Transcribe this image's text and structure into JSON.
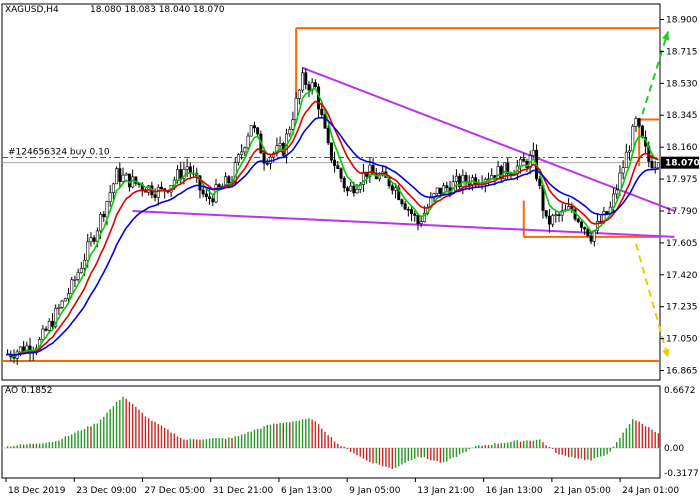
{
  "window": {
    "symbol_title": "XAGUSD,H4",
    "ohlc_text": "18.080 18.083 18.040 18.070",
    "order_line_label": "#124656324 buy 0.10",
    "current_price_label": "18.070"
  },
  "oscillator": {
    "label": "AO 0.1852",
    "max_label": "0.6672",
    "zero_label": "0.00",
    "min_label": "-0.3177"
  },
  "colors": {
    "bullish_candle": "#000000",
    "ma_green": "#00cc00",
    "ma_red": "#dd0000",
    "ma_blue": "#0000dd",
    "trendline": "#bb33ee",
    "levels": "#ff6600",
    "arrow_up": "#22cc22",
    "arrow_down": "#eecc00",
    "ao_up": "#229922",
    "ao_down": "#cc2222"
  },
  "chart_data": {
    "type": "candlestick",
    "instrument": "XAGUSD",
    "timeframe": "H4",
    "price_ticks": [
      "18.900",
      "18.715",
      "18.530",
      "18.345",
      "18.160",
      "17.975",
      "17.790",
      "17.605",
      "17.420",
      "17.235",
      "17.050",
      "16.865"
    ],
    "price_tick_values": [
      18.9,
      18.715,
      18.53,
      18.345,
      18.16,
      17.975,
      17.79,
      17.605,
      17.42,
      17.235,
      17.05,
      16.865
    ],
    "time_ticks": [
      "18 Dec 2019",
      "23 Dec 09:00",
      "27 Dec 05:00",
      "31 Dec 21:00",
      "6 Jan 13:00",
      "9 Jan 05:00",
      "13 Jan 21:00",
      "16 Jan 13:00",
      "21 Jan 05:00",
      "24 Jan 01:00"
    ],
    "ylim": [
      16.81,
      18.99
    ],
    "current_price": 18.07,
    "order_price": 18.1,
    "order_label": "#124656324 buy 0.10",
    "horizontal_levels": [
      18.85,
      18.32,
      17.64,
      16.92
    ],
    "trendlines": [
      {
        "from": {
          "bar": 92,
          "price": 18.62
        },
        "to": {
          "bar": 208,
          "price": 17.79
        }
      },
      {
        "from": {
          "bar": 39,
          "price": 17.79
        },
        "to": {
          "bar": 208,
          "price": 17.64
        }
      }
    ],
    "forecast_up": {
      "from": {
        "bar": 198,
        "price": 18.35
      },
      "to": {
        "bar": 206,
        "price": 18.83
      }
    },
    "forecast_down": {
      "from": {
        "bar": 196,
        "price": 17.6
      },
      "to": {
        "bar": 206,
        "price": 16.94
      }
    },
    "price_path_keypoints": [
      [
        0,
        16.96
      ],
      [
        10,
        17.03
      ],
      [
        20,
        17.35
      ],
      [
        28,
        17.7
      ],
      [
        34,
        18.0
      ],
      [
        40,
        17.95
      ],
      [
        48,
        17.9
      ],
      [
        56,
        18.05
      ],
      [
        62,
        17.85
      ],
      [
        70,
        17.98
      ],
      [
        76,
        18.3
      ],
      [
        80,
        18.1
      ],
      [
        86,
        18.15
      ],
      [
        92,
        18.55
      ],
      [
        96,
        18.5
      ],
      [
        100,
        18.15
      ],
      [
        106,
        17.9
      ],
      [
        112,
        18.02
      ],
      [
        120,
        17.95
      ],
      [
        128,
        17.72
      ],
      [
        134,
        17.9
      ],
      [
        140,
        17.95
      ],
      [
        150,
        18.0
      ],
      [
        160,
        18.05
      ],
      [
        164,
        18.1
      ],
      [
        168,
        17.72
      ],
      [
        176,
        17.8
      ],
      [
        182,
        17.65
      ],
      [
        188,
        17.8
      ],
      [
        192,
        18.05
      ],
      [
        196,
        18.3
      ],
      [
        200,
        18.08
      ],
      [
        203,
        18.07
      ]
    ],
    "ao": {
      "label": "AO 0.1852",
      "ylim": [
        -0.3177,
        0.6672
      ],
      "keypoints": [
        [
          0,
          0.02
        ],
        [
          15,
          0.08
        ],
        [
          28,
          0.3
        ],
        [
          36,
          0.62
        ],
        [
          44,
          0.35
        ],
        [
          55,
          0.1
        ],
        [
          70,
          0.12
        ],
        [
          82,
          0.28
        ],
        [
          95,
          0.35
        ],
        [
          103,
          0.05
        ],
        [
          112,
          -0.15
        ],
        [
          120,
          -0.25
        ],
        [
          128,
          -0.1
        ],
        [
          136,
          -0.18
        ],
        [
          146,
          0.02
        ],
        [
          158,
          0.08
        ],
        [
          166,
          0.1
        ],
        [
          172,
          -0.08
        ],
        [
          182,
          -0.15
        ],
        [
          188,
          -0.05
        ],
        [
          195,
          0.35
        ],
        [
          203,
          0.18
        ]
      ]
    }
  }
}
